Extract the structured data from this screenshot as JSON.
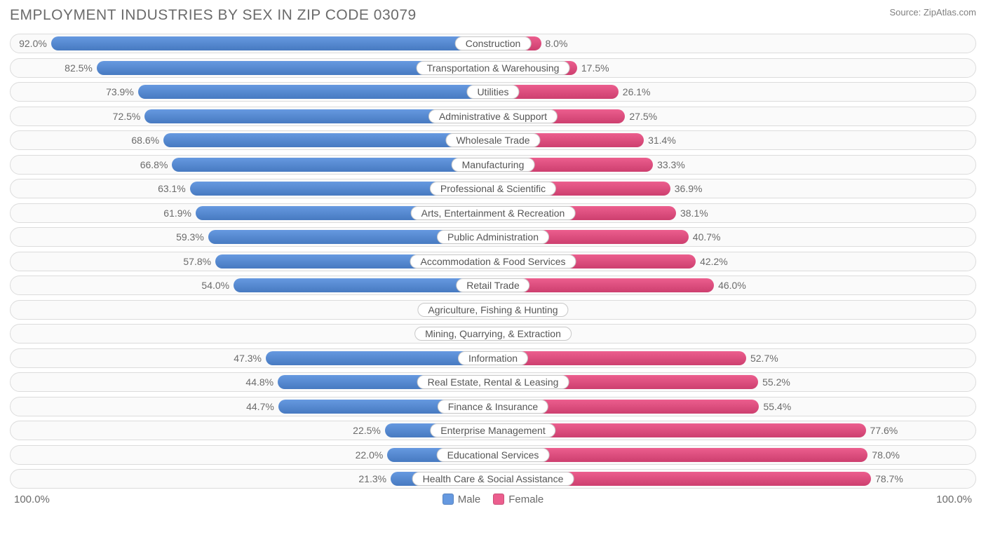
{
  "title": "EMPLOYMENT INDUSTRIES BY SEX IN ZIP CODE 03079",
  "source": "Source: ZipAtlas.com",
  "axis": {
    "left": "100.0%",
    "right": "100.0%"
  },
  "legend": {
    "male": {
      "label": "Male",
      "color": "#6699e0"
    },
    "female": {
      "label": "Female",
      "color": "#ec5e8e"
    }
  },
  "colors": {
    "male": "#6699e0",
    "female": "#ec5e8e",
    "male_faded": "#a6c2ec",
    "female_faded": "#f4a3bd",
    "row_bg": "#fafafa",
    "row_border": "#dcdcdc",
    "text": "#6b6b6b",
    "pill_bg": "#ffffff",
    "pill_border": "#c8c8c8"
  },
  "chart": {
    "type": "diverging-bar",
    "min_bar_pct": 10,
    "rows": [
      {
        "category": "Construction",
        "male": 92.0,
        "female": 8.0,
        "faded": false
      },
      {
        "category": "Transportation & Warehousing",
        "male": 82.5,
        "female": 17.5,
        "faded": false
      },
      {
        "category": "Utilities",
        "male": 73.9,
        "female": 26.1,
        "faded": false
      },
      {
        "category": "Administrative & Support",
        "male": 72.5,
        "female": 27.5,
        "faded": false
      },
      {
        "category": "Wholesale Trade",
        "male": 68.6,
        "female": 31.4,
        "faded": false
      },
      {
        "category": "Manufacturing",
        "male": 66.8,
        "female": 33.3,
        "faded": false
      },
      {
        "category": "Professional & Scientific",
        "male": 63.1,
        "female": 36.9,
        "faded": false
      },
      {
        "category": "Arts, Entertainment & Recreation",
        "male": 61.9,
        "female": 38.1,
        "faded": false
      },
      {
        "category": "Public Administration",
        "male": 59.3,
        "female": 40.7,
        "faded": false
      },
      {
        "category": "Accommodation & Food Services",
        "male": 57.8,
        "female": 42.2,
        "faded": false
      },
      {
        "category": "Retail Trade",
        "male": 54.0,
        "female": 46.0,
        "faded": false
      },
      {
        "category": "Agriculture, Fishing & Hunting",
        "male": 0.0,
        "female": 0.0,
        "faded": true
      },
      {
        "category": "Mining, Quarrying, & Extraction",
        "male": 0.0,
        "female": 0.0,
        "faded": true
      },
      {
        "category": "Information",
        "male": 47.3,
        "female": 52.7,
        "faded": false
      },
      {
        "category": "Real Estate, Rental & Leasing",
        "male": 44.8,
        "female": 55.2,
        "faded": false
      },
      {
        "category": "Finance & Insurance",
        "male": 44.7,
        "female": 55.4,
        "faded": false
      },
      {
        "category": "Enterprise Management",
        "male": 22.5,
        "female": 77.6,
        "faded": false
      },
      {
        "category": "Educational Services",
        "male": 22.0,
        "female": 78.0,
        "faded": false
      },
      {
        "category": "Health Care & Social Assistance",
        "male": 21.3,
        "female": 78.7,
        "faded": false
      }
    ]
  }
}
